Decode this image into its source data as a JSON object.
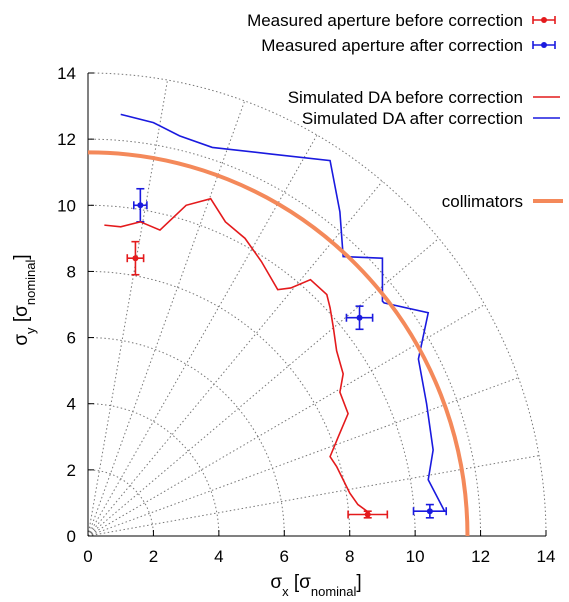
{
  "chart_data": {
    "type": "line",
    "xlabel": "σx [σnominal]",
    "ylabel": "σy [σnominal]",
    "xlim": [
      0,
      14
    ],
    "ylim": [
      0,
      14
    ],
    "x_ticks": [
      "0",
      "2",
      "4",
      "6",
      "8",
      "10",
      "12",
      "14"
    ],
    "y_ticks": [
      "0",
      "2",
      "4",
      "6",
      "8",
      "10",
      "12",
      "14"
    ],
    "polar_grid": {
      "radii": [
        2,
        4,
        6,
        8,
        10,
        12,
        14
      ],
      "angles_deg": [
        0,
        10,
        20,
        30,
        40,
        50,
        60,
        70,
        80,
        90
      ]
    },
    "legend_placement": "top-right",
    "series": [
      {
        "name": "Measured aperture before correction",
        "kind": "points-with-error-bars",
        "color": "#e41a1c",
        "points": [
          {
            "x": 1.45,
            "y": 8.4,
            "xerr": 0.25,
            "yerr": 0.5
          },
          {
            "x": 8.55,
            "y": 0.65,
            "xerr": 0.6,
            "yerr": 0.1
          }
        ]
      },
      {
        "name": "Measured aperture after correction",
        "kind": "points-with-error-bars",
        "color": "#1a1adf",
        "points": [
          {
            "x": 1.6,
            "y": 10.0,
            "xerr": 0.2,
            "yerr": 0.5
          },
          {
            "x": 8.3,
            "y": 6.6,
            "xerr": 0.4,
            "yerr": 0.35
          },
          {
            "x": 10.45,
            "y": 0.75,
            "xerr": 0.5,
            "yerr": 0.2
          }
        ]
      },
      {
        "name": "Simulated DA before correction",
        "kind": "line",
        "color": "#e41a1c",
        "x": [
          0.5,
          1.0,
          1.6,
          2.2,
          3.0,
          3.75,
          4.2,
          4.8,
          5.3,
          5.8,
          6.2,
          6.8,
          7.3,
          7.4,
          7.5,
          7.6,
          7.8,
          7.7,
          7.95,
          7.65,
          7.4,
          7.6,
          7.8,
          8.0,
          8.25,
          8.6
        ],
        "y": [
          9.4,
          9.35,
          9.5,
          9.25,
          10.0,
          10.2,
          9.5,
          9.0,
          8.3,
          7.45,
          7.5,
          7.75,
          7.3,
          6.9,
          6.3,
          5.6,
          4.9,
          4.35,
          3.7,
          3.0,
          2.4,
          2.1,
          1.7,
          1.3,
          0.95,
          0.7
        ]
      },
      {
        "name": "Simulated DA after correction",
        "kind": "line",
        "color": "#1a1adf",
        "x": [
          1.0,
          2.0,
          2.8,
          3.8,
          5.6,
          7.4,
          7.7,
          7.8,
          9.0,
          9.0,
          9.05,
          10.4,
          10.1,
          10.35,
          10.55,
          10.4,
          10.9
        ],
        "y": [
          12.75,
          12.5,
          12.1,
          11.75,
          11.55,
          11.35,
          9.8,
          8.45,
          8.4,
          7.1,
          7.05,
          6.75,
          5.35,
          4.0,
          2.6,
          1.7,
          0.75
        ]
      },
      {
        "name": "collimators",
        "kind": "arc",
        "color": "#f4895a",
        "radius": 11.6
      }
    ]
  }
}
